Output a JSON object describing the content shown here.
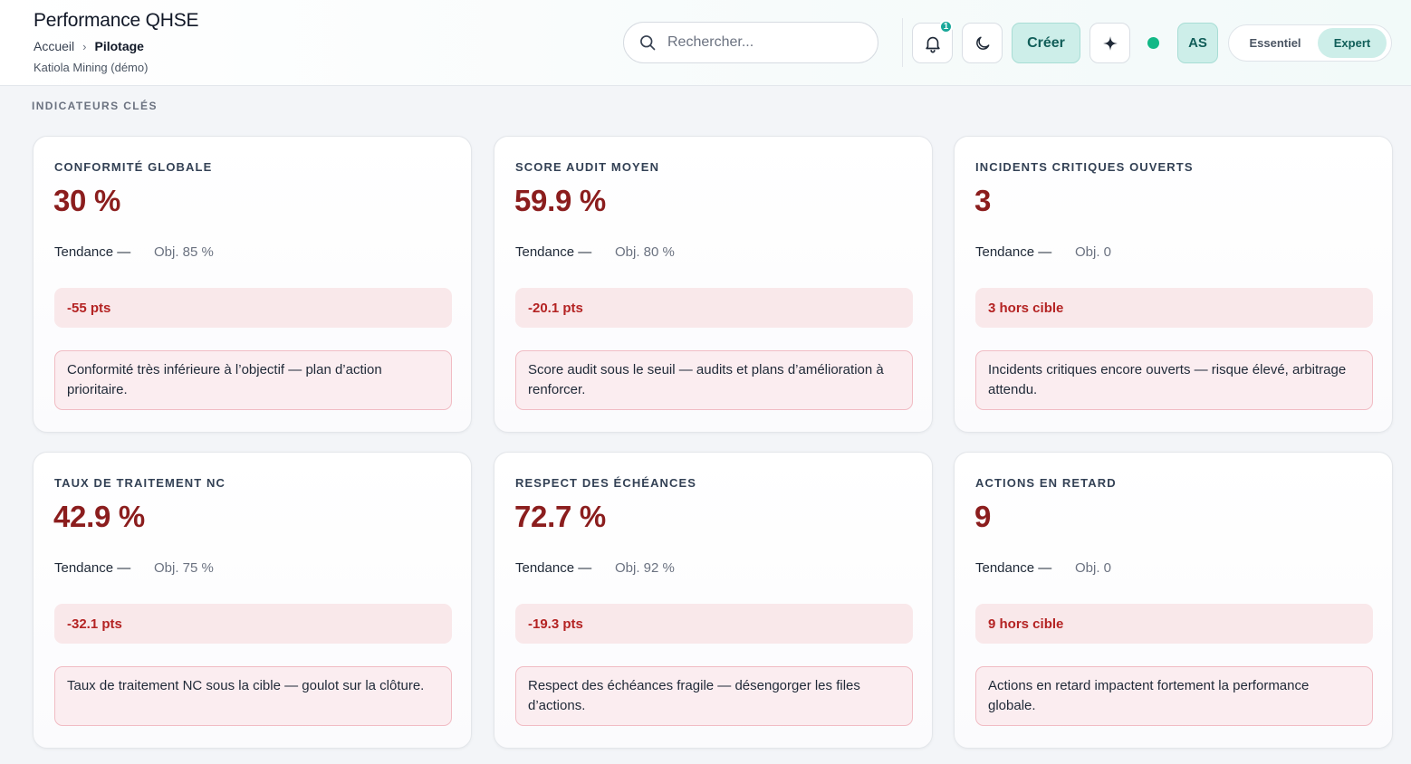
{
  "header": {
    "title": "Performance QHSE",
    "breadcrumb": {
      "home": "Accueil",
      "separator": "›",
      "current": "Pilotage"
    },
    "organization": "Katiola Mining (démo)",
    "search": {
      "placeholder": "Rechercher...",
      "value": ""
    },
    "notifications": {
      "icon": "bell-icon",
      "count": "1"
    },
    "theme_icon": "moon-icon",
    "create_label": "Créer",
    "assistant_icon": "sparkle-icon",
    "status_color": "#12b886",
    "avatar_initials": "AS",
    "mode": {
      "options": [
        "Essentiel",
        "Expert"
      ],
      "selected": "Expert"
    }
  },
  "section_title": "INDICATEURS CLÉS",
  "colors": {
    "accent": "#1aa89a",
    "accent_soft": "#cdeee9",
    "kpi_value": "#8b1d1d",
    "delta_text": "#b42323",
    "delta_bg": "#f9e8ea",
    "note_border": "#f1bcc4"
  },
  "kpis": [
    {
      "label": "CONFORMITÉ GLOBALE",
      "value": "30 %",
      "trend": "Tendance —",
      "target": "Obj. 85 %",
      "delta": "-55 pts",
      "note": "Conformité très inférieure à l’objectif — plan d’action prioritaire."
    },
    {
      "label": "SCORE AUDIT MOYEN",
      "value": "59.9 %",
      "trend": "Tendance —",
      "target": "Obj. 80 %",
      "delta": "-20.1 pts",
      "note": "Score audit sous le seuil — audits et plans d’amélioration à renforcer."
    },
    {
      "label": "INCIDENTS CRITIQUES OUVERTS",
      "value": "3",
      "trend": "Tendance —",
      "target": "Obj. 0",
      "delta": "3 hors cible",
      "note": "Incidents critiques encore ouverts — risque élevé, arbitrage attendu."
    },
    {
      "label": "TAUX DE TRAITEMENT NC",
      "value": "42.9 %",
      "trend": "Tendance —",
      "target": "Obj. 75 %",
      "delta": "-32.1 pts",
      "note": "Taux de traitement NC sous la cible — goulot sur la clôture."
    },
    {
      "label": "RESPECT DES ÉCHÉANCES",
      "value": "72.7 %",
      "trend": "Tendance —",
      "target": "Obj. 92 %",
      "delta": "-19.3 pts",
      "note": "Respect des échéances fragile — désengorger les files d’actions."
    },
    {
      "label": "ACTIONS EN RETARD",
      "value": "9",
      "trend": "Tendance —",
      "target": "Obj. 0",
      "delta": "9 hors cible",
      "note": "Actions en retard impactent fortement la performance globale."
    }
  ]
}
